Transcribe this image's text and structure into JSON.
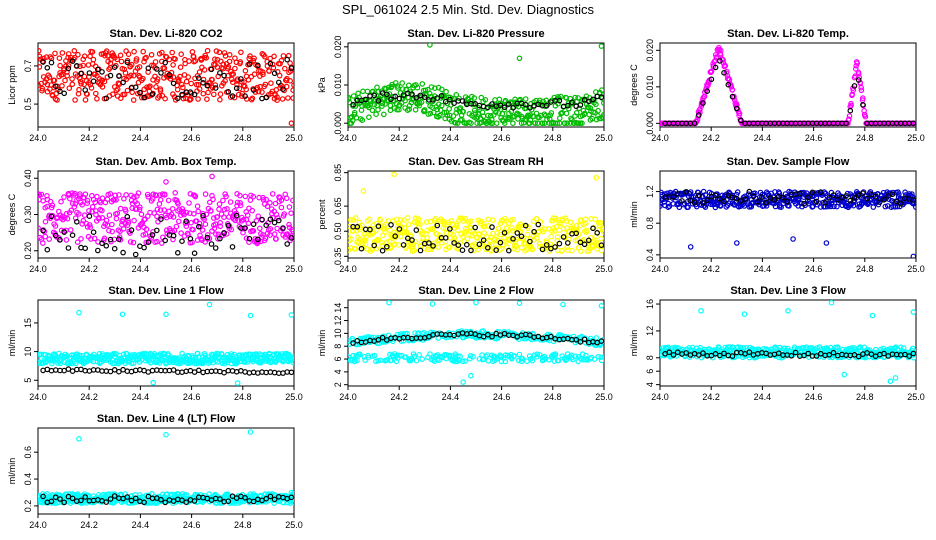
{
  "page": {
    "title": "SPL_061024  2.5 Min. Std. Dev. Diagnostics"
  },
  "chart_data": [
    {
      "type": "scatter",
      "title": "Stan. Dev. Li-820 CO2",
      "ylabel": "Licor ppm",
      "color": "#ff0000",
      "xlim": [
        24.0,
        25.0
      ],
      "ylim": [
        0.38,
        0.82
      ],
      "xticks": [
        "24.0",
        "24.2",
        "24.4",
        "24.6",
        "24.8",
        "25.0"
      ],
      "yticks": [
        {
          "v": 0.5,
          "label": "0.5"
        },
        {
          "v": 0.7,
          "label": "0.7"
        }
      ],
      "pattern": {
        "kind": "band",
        "lo": 0.52,
        "hi": 0.78,
        "center": 0.65,
        "blackOffset": -0.02,
        "outliers": [
          [
            24.99,
            0.4
          ]
        ]
      }
    },
    {
      "type": "scatter",
      "title": "Stan. Dev. Li-820 Pressure",
      "ylabel": "kPa",
      "color": "#00bb00",
      "xlim": [
        24.0,
        25.0
      ],
      "ylim": [
        -0.001,
        0.021
      ],
      "xticks": [
        "24.0",
        "24.2",
        "24.4",
        "24.6",
        "24.8",
        "25.0"
      ],
      "yticks": [
        {
          "v": 0,
          "label": "0.000"
        },
        {
          "v": 0.01,
          "label": "0.010"
        },
        {
          "v": 0.02,
          "label": "0.020"
        }
      ],
      "pattern": {
        "kind": "wave",
        "base": 0.003,
        "amp": 0.004,
        "spread": 0.004,
        "blackLift": 0.002,
        "outliers": [
          [
            24.32,
            0.0205
          ],
          [
            24.67,
            0.017
          ],
          [
            24.99,
            0.0202
          ]
        ]
      }
    },
    {
      "type": "scatter",
      "title": "Stan. Dev. Li-820 Temp.",
      "ylabel": "degrees C",
      "color": "#ff00ff",
      "xlim": [
        24.0,
        25.0
      ],
      "ylim": [
        -0.001,
        0.022
      ],
      "xticks": [
        "24.0",
        "24.2",
        "24.4",
        "24.6",
        "24.8",
        "25.0"
      ],
      "yticks": [
        {
          "v": 0,
          "label": "0.000"
        },
        {
          "v": 0.01,
          "label": "0.010"
        },
        {
          "v": 0.02,
          "label": "0.020"
        }
      ],
      "pattern": {
        "kind": "peaks",
        "peaks": [
          [
            24.23,
            0.021,
            0.09
          ],
          [
            24.77,
            0.017,
            0.035
          ]
        ],
        "outliers": []
      }
    },
    {
      "type": "scatter",
      "title": "Stan. Dev. Amb. Box Temp.",
      "ylabel": "degrees C",
      "color": "#ff00ff",
      "xlim": [
        24.0,
        25.0
      ],
      "ylim": [
        0.18,
        0.42
      ],
      "xticks": [
        "24.0",
        "24.2",
        "24.4",
        "24.6",
        "24.8",
        "25.0"
      ],
      "yticks": [
        {
          "v": 0.2,
          "label": "0.20"
        },
        {
          "v": 0.3,
          "label": "0.30"
        },
        {
          "v": 0.4,
          "label": "0.40"
        }
      ],
      "pattern": {
        "kind": "band",
        "lo": 0.22,
        "hi": 0.36,
        "center": 0.28,
        "blackOffset": -0.035,
        "outliers": [
          [
            24.68,
            0.405
          ],
          [
            24.5,
            0.39
          ]
        ]
      }
    },
    {
      "type": "scatter",
      "title": "Stan. Dev. Gas Stream RH",
      "ylabel": "percent",
      "color": "#ffff00",
      "xlim": [
        24.0,
        25.0
      ],
      "ylim": [
        0.34,
        0.86
      ],
      "xticks": [
        "24.0",
        "24.2",
        "24.4",
        "24.6",
        "24.8",
        "25.0"
      ],
      "yticks": [
        {
          "v": 0.35,
          "label": "0.35"
        },
        {
          "v": 0.5,
          "label": "0.50"
        },
        {
          "v": 0.65,
          "label": "0.65"
        },
        {
          "v": 0.85,
          "label": "0.85"
        }
      ],
      "pattern": {
        "kind": "band",
        "lo": 0.38,
        "hi": 0.58,
        "center": 0.46,
        "blackOffset": 0.0,
        "outliers": [
          [
            24.18,
            0.84
          ],
          [
            24.97,
            0.82
          ],
          [
            24.06,
            0.74
          ]
        ]
      }
    },
    {
      "type": "scatter",
      "title": "Stan. Dev. Sample Flow",
      "ylabel": "ml/min",
      "color": "#0000cc",
      "xlim": [
        24.0,
        25.0
      ],
      "ylim": [
        0.36,
        1.46
      ],
      "xticks": [
        "24.0",
        "24.2",
        "24.4",
        "24.6",
        "24.8",
        "25.0"
      ],
      "yticks": [
        {
          "v": 0.4,
          "label": "0.4"
        },
        {
          "v": 0.8,
          "label": "0.8"
        },
        {
          "v": 1.2,
          "label": "1.2"
        }
      ],
      "pattern": {
        "kind": "band",
        "lo": 1.0,
        "hi": 1.2,
        "center": 1.12,
        "blackOffset": 0.0,
        "outliers": [
          [
            24.99,
            0.38
          ],
          [
            24.12,
            0.5
          ],
          [
            24.3,
            0.55
          ],
          [
            24.52,
            0.6
          ],
          [
            24.65,
            0.55
          ]
        ]
      }
    },
    {
      "type": "scatter",
      "title": "Stan. Dev. Line 1 Flow",
      "ylabel": "ml/min",
      "color": "#00ffff",
      "xlim": [
        24.0,
        25.0
      ],
      "ylim": [
        4,
        19
      ],
      "xticks": [
        "24.0",
        "24.2",
        "24.4",
        "24.6",
        "24.8",
        "25.0"
      ],
      "yticks": [
        {
          "v": 5,
          "label": "5"
        },
        {
          "v": 10,
          "label": "10"
        },
        {
          "v": 15,
          "label": "15"
        }
      ],
      "pattern": {
        "kind": "line",
        "lo": 8.0,
        "hi": 9.8,
        "center": 8.8,
        "blackBase": 6.8,
        "blackSlope": -0.4,
        "blackSpread": 0.2,
        "outliers": [
          [
            24.16,
            16.8
          ],
          [
            24.33,
            16.5
          ],
          [
            24.5,
            16.5
          ],
          [
            24.67,
            18.2
          ],
          [
            24.83,
            16.3
          ],
          [
            24.99,
            16.4
          ],
          [
            24.45,
            4.6
          ],
          [
            24.78,
            4.5
          ]
        ]
      }
    },
    {
      "type": "scatter",
      "title": "Stan. Dev. Line 2 Flow",
      "ylabel": "ml/min",
      "color": "#00ffff",
      "xlim": [
        24.0,
        25.0
      ],
      "ylim": [
        1.8,
        15.2
      ],
      "xticks": [
        "24.0",
        "24.2",
        "24.4",
        "24.6",
        "24.8",
        "25.0"
      ],
      "yticks": [
        {
          "v": 2,
          "label": "2"
        },
        {
          "v": 4,
          "label": "4"
        },
        {
          "v": 6,
          "label": "6"
        },
        {
          "v": 8,
          "label": "8"
        },
        {
          "v": 10,
          "label": "10"
        },
        {
          "v": 12,
          "label": "12"
        },
        {
          "v": 14,
          "label": "14"
        }
      ],
      "pattern": {
        "kind": "twoband",
        "b1": 8.6,
        "b2": 6.2,
        "arc": 1.2,
        "spread": 0.6,
        "blackBase": 8.6,
        "outliers": [
          [
            24.16,
            14.8
          ],
          [
            24.33,
            14.6
          ],
          [
            24.5,
            14.8
          ],
          [
            24.67,
            14.7
          ],
          [
            24.84,
            14.5
          ],
          [
            24.99,
            14.3
          ],
          [
            24.45,
            2.4
          ],
          [
            24.48,
            3.4
          ]
        ]
      }
    },
    {
      "type": "scatter",
      "title": "Stan. Dev. Line 3 Flow",
      "ylabel": "ml/min",
      "color": "#00ffff",
      "xlim": [
        24.0,
        25.0
      ],
      "ylim": [
        3.8,
        16.6
      ],
      "xticks": [
        "24.0",
        "24.2",
        "24.4",
        "24.6",
        "24.8",
        "25.0"
      ],
      "yticks": [
        {
          "v": 4,
          "label": "4"
        },
        {
          "v": 6,
          "label": "6"
        },
        {
          "v": 8,
          "label": "8"
        },
        {
          "v": 12,
          "label": "12"
        },
        {
          "v": 16,
          "label": "16"
        }
      ],
      "pattern": {
        "kind": "line",
        "lo": 8.0,
        "hi": 9.6,
        "center": 8.8,
        "blackBase": 8.6,
        "blackSlope": -0.2,
        "blackSpread": 0.3,
        "outliers": [
          [
            24.16,
            15.0
          ],
          [
            24.33,
            14.5
          ],
          [
            24.5,
            15.0
          ],
          [
            24.67,
            16.2
          ],
          [
            24.83,
            14.3
          ],
          [
            24.99,
            14.8
          ],
          [
            24.9,
            4.5
          ],
          [
            24.92,
            5.0
          ],
          [
            24.72,
            5.5
          ]
        ]
      }
    },
    {
      "type": "scatter",
      "title": "Stan. Dev. Line 4 (LT) Flow",
      "ylabel": "ml/min",
      "color": "#00ffff",
      "xlim": [
        24.0,
        25.0
      ],
      "ylim": [
        0.14,
        0.78
      ],
      "xticks": [
        "24.0",
        "24.2",
        "24.4",
        "24.6",
        "24.8",
        "25.0"
      ],
      "yticks": [
        {
          "v": 0.2,
          "label": "0.2"
        },
        {
          "v": 0.4,
          "label": "0.4"
        },
        {
          "v": 0.6,
          "label": "0.6"
        }
      ],
      "pattern": {
        "kind": "line",
        "lo": 0.22,
        "hi": 0.29,
        "center": 0.255,
        "blackBase": 0.25,
        "blackSlope": 0.0,
        "blackSpread": 0.025,
        "outliers": [
          [
            24.16,
            0.7
          ],
          [
            24.5,
            0.73
          ],
          [
            24.83,
            0.75
          ],
          [
            24.99,
            0.3
          ]
        ]
      }
    }
  ]
}
